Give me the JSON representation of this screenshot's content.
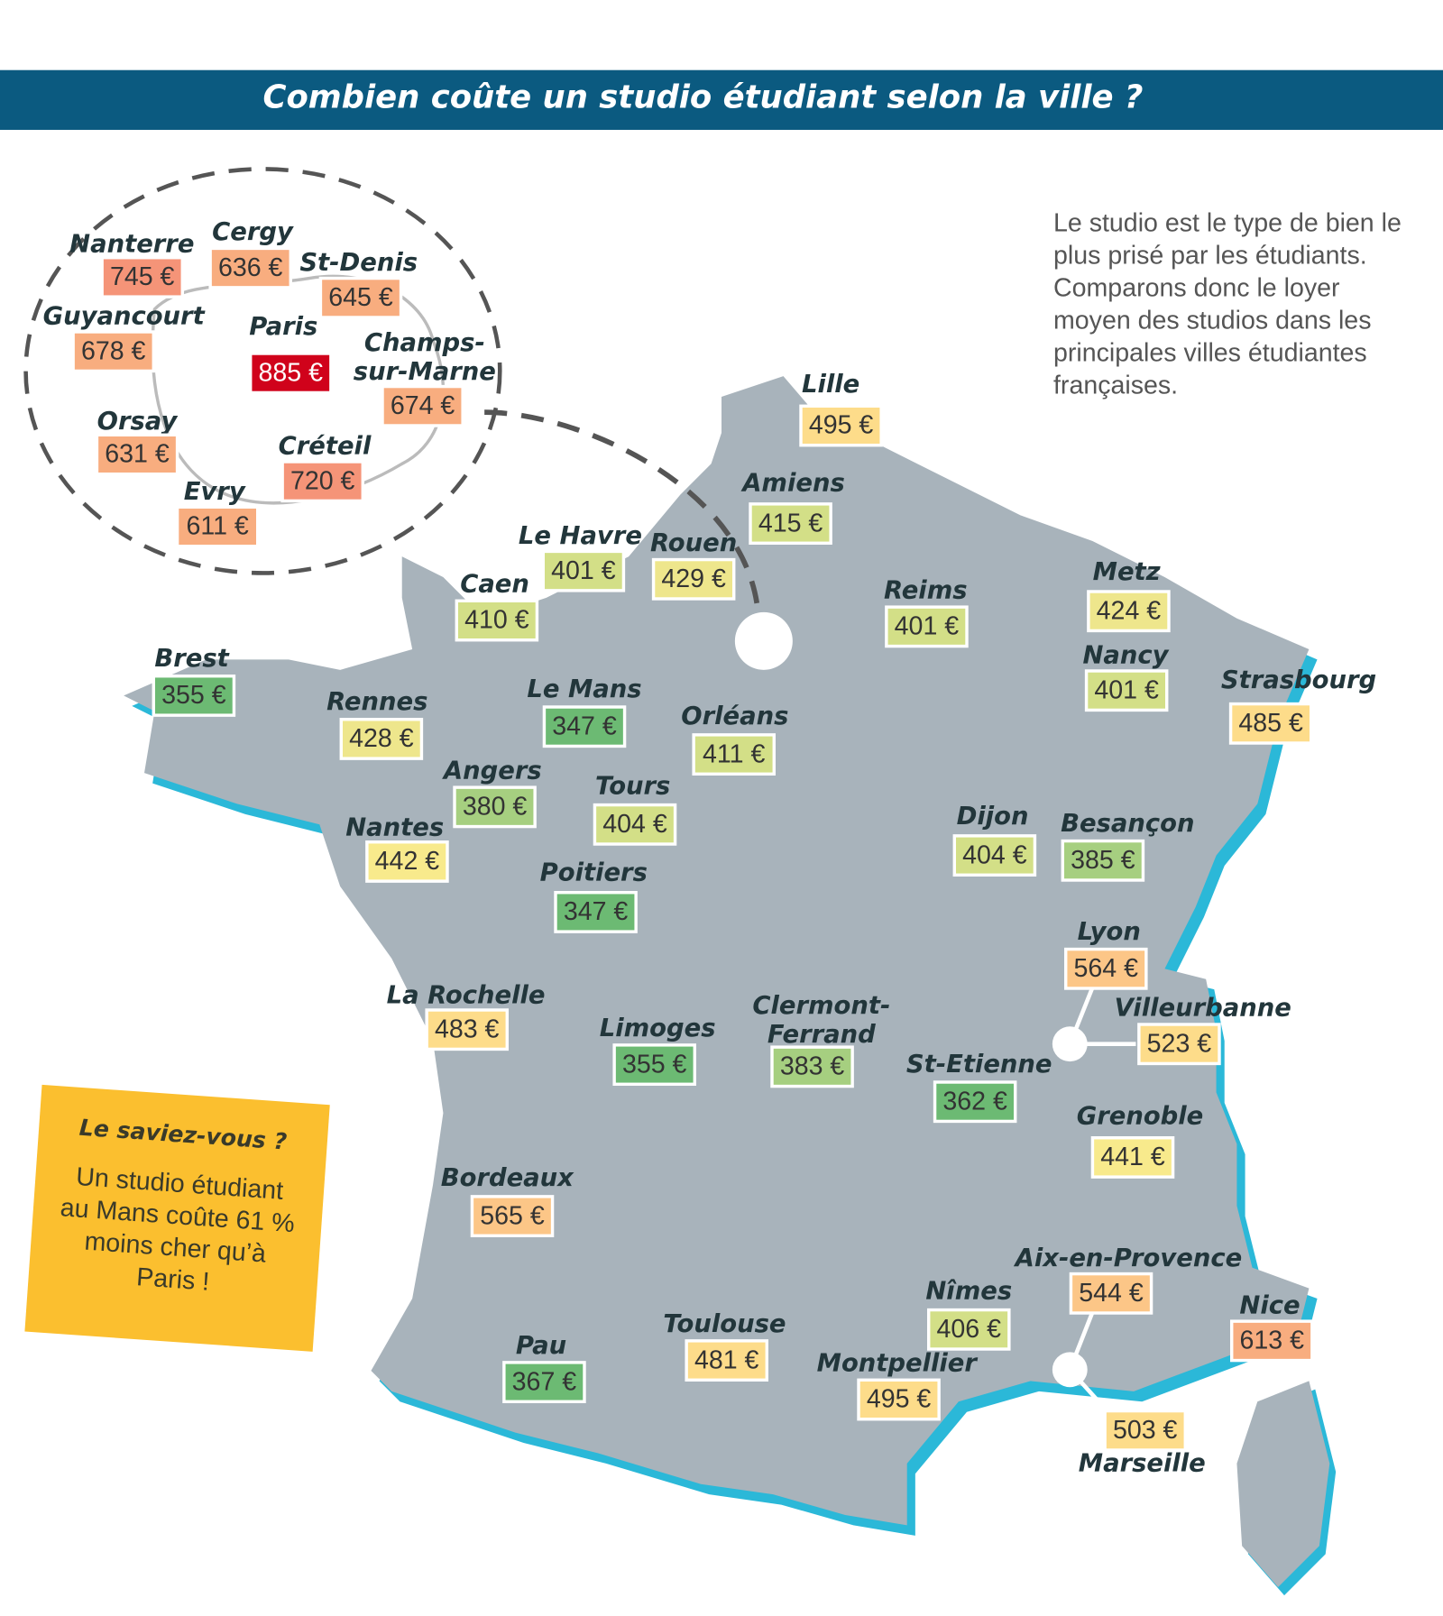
{
  "title": "Combien coûte un studio étudiant selon la ville ?",
  "intro": [
    "Le studio est le type de bien le",
    "plus prisé par les étudiants.",
    "Comparons donc le loyer",
    "moyen des studios dans les",
    "principales villes étudiantes",
    "françaises."
  ],
  "note": {
    "title": "Le saviez-vous ?",
    "lines": [
      "Un studio étudiant",
      "au Mans coûte 61 %",
      "moins cher qu’à",
      "Paris !"
    ]
  },
  "cities": [
    {
      "name": "Nanterre",
      "price": "745 €",
      "color": "#f59478"
    },
    {
      "name": "Cergy",
      "price": "636 €",
      "color": "#f8ad7f"
    },
    {
      "name": "St-Denis",
      "price": "645 €",
      "color": "#f8ad7f"
    },
    {
      "name": "Guyancourt",
      "price": "678 €",
      "color": "#f8ad7f"
    },
    {
      "name": "Paris",
      "price": "885 €",
      "color": "#d0021b"
    },
    {
      "name": [
        "Champs-",
        "sur-Marne"
      ],
      "price": "674 €",
      "color": "#f8ad7f"
    },
    {
      "name": "Orsay",
      "price": "631 €",
      "color": "#f8ad7f"
    },
    {
      "name": "Créteil",
      "price": "720 €",
      "color": "#f59478"
    },
    {
      "name": "Evry",
      "price": "611 €",
      "color": "#f8ad7f"
    },
    {
      "name": "Lille",
      "price": "495 €",
      "color": "#fddc8a"
    },
    {
      "name": "Amiens",
      "price": "415 €",
      "color": "#d3df87"
    },
    {
      "name": "Le Havre",
      "price": "401 €",
      "color": "#d3df87"
    },
    {
      "name": "Rouen",
      "price": "429 €",
      "color": "#eee68c"
    },
    {
      "name": "Caen",
      "price": "410 €",
      "color": "#d3df87"
    },
    {
      "name": "Reims",
      "price": "401 €",
      "color": "#d3df87"
    },
    {
      "name": "Metz",
      "price": "424 €",
      "color": "#eee68c"
    },
    {
      "name": "Nancy",
      "price": "401 €",
      "color": "#d3df87"
    },
    {
      "name": "Strasbourg",
      "price": "485 €",
      "color": "#fddc8a"
    },
    {
      "name": "Brest",
      "price": "355 €",
      "color": "#6cba73"
    },
    {
      "name": "Rennes",
      "price": "428 €",
      "color": "#eee68c"
    },
    {
      "name": "Le Mans",
      "price": "347 €",
      "color": "#6cba73"
    },
    {
      "name": "Orléans",
      "price": "411 €",
      "color": "#d3df87"
    },
    {
      "name": "Angers",
      "price": "380 €",
      "color": "#a6cf80"
    },
    {
      "name": "Tours",
      "price": "404 €",
      "color": "#d3df87"
    },
    {
      "name": "Nantes",
      "price": "442 €",
      "color": "#f8ea8c"
    },
    {
      "name": "Dijon",
      "price": "404 €",
      "color": "#d3df87"
    },
    {
      "name": "Besançon",
      "price": "385 €",
      "color": "#a6cf80"
    },
    {
      "name": "Poitiers",
      "price": "347 €",
      "color": "#6cba73"
    },
    {
      "name": "Lyon",
      "price": "564 €",
      "color": "#fcc687"
    },
    {
      "name": "Villeurbanne",
      "price": "523 €",
      "color": "#fddc8a"
    },
    {
      "name": "La Rochelle",
      "price": "483 €",
      "color": "#fddc8a"
    },
    {
      "name": "Limoges",
      "price": "355 €",
      "color": "#6cba73"
    },
    {
      "name": [
        "Clermont-",
        "Ferrand"
      ],
      "price": "383 €",
      "color": "#a6cf80"
    },
    {
      "name": "St-Etienne",
      "price": "362 €",
      "color": "#6cba73"
    },
    {
      "name": "Grenoble",
      "price": "441 €",
      "color": "#f8ea8c"
    },
    {
      "name": "Bordeaux",
      "price": "565 €",
      "color": "#fcc687"
    },
    {
      "name": "Aix-en-Provence",
      "price": "544 €",
      "color": "#fcc687"
    },
    {
      "name": "Nîmes",
      "price": "406 €",
      "color": "#d3df87"
    },
    {
      "name": "Nice",
      "price": "613 €",
      "color": "#f8ad7f"
    },
    {
      "name": "Toulouse",
      "price": "481 €",
      "color": "#fddc8a"
    },
    {
      "name": "Montpellier",
      "price": "495 €",
      "color": "#fddc8a"
    },
    {
      "name": "Pau",
      "price": "367 €",
      "color": "#6cba73"
    },
    {
      "name": "Marseille",
      "price": "503 €",
      "color": "#fddc8a"
    }
  ]
}
